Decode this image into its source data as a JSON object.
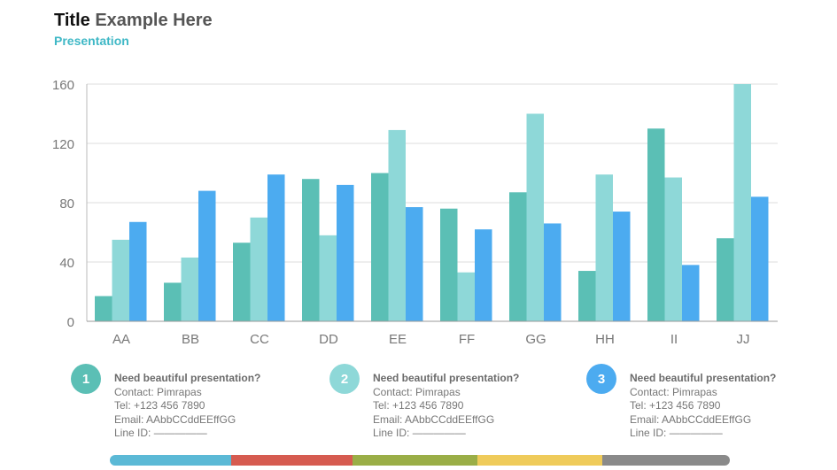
{
  "header": {
    "title_part1": "Title",
    "title_part2": "Example Here",
    "subtitle": "Presentation"
  },
  "chart_data": {
    "type": "bar",
    "categories": [
      "AA",
      "BB",
      "CC",
      "DD",
      "EE",
      "FF",
      "GG",
      "HH",
      "II",
      "JJ"
    ],
    "series": [
      {
        "values": [
          17,
          26,
          53,
          96,
          100,
          76,
          87,
          34,
          130,
          56
        ],
        "color": "#5bbfb5"
      },
      {
        "values": [
          55,
          43,
          70,
          58,
          129,
          33,
          140,
          99,
          97,
          160
        ],
        "color": "#8ed8d8"
      },
      {
        "values": [
          67,
          88,
          99,
          92,
          77,
          62,
          66,
          74,
          38,
          84
        ],
        "color": "#4cabf0"
      }
    ],
    "ylim": [
      0,
      160
    ],
    "yticks": [
      0,
      40,
      80,
      120,
      160
    ],
    "grid": true,
    "legend": "none",
    "title": "",
    "xlabel": "",
    "ylabel": ""
  },
  "info_blocks": [
    {
      "number": "1",
      "color": "#5bbfb5",
      "heading": "Need beautiful presentation?",
      "contact": "Contact: Pimrapas",
      "tel": "Tel: +123 456 7890",
      "email": "Email: AAbbCCddEEffGG",
      "line": "Line ID: —————"
    },
    {
      "number": "2",
      "color": "#8ed8d8",
      "heading": "Need beautiful presentation?",
      "contact": "Contact: Pimrapas",
      "tel": "Tel: +123 456 7890",
      "email": "Email: AAbbCCddEEffGG",
      "line": "Line ID: —————"
    },
    {
      "number": "3",
      "color": "#4cabf0",
      "heading": "Need beautiful presentation?",
      "contact": "Contact: Pimrapas",
      "tel": "Tel: +123 456 7890",
      "email": "Email: AAbbCCddEEffGG",
      "line": "Line ID: —————"
    }
  ],
  "color_strip": [
    "#5bb9d6",
    "#d65b50",
    "#9aae47",
    "#efcb5a",
    "#8a8a8a"
  ]
}
